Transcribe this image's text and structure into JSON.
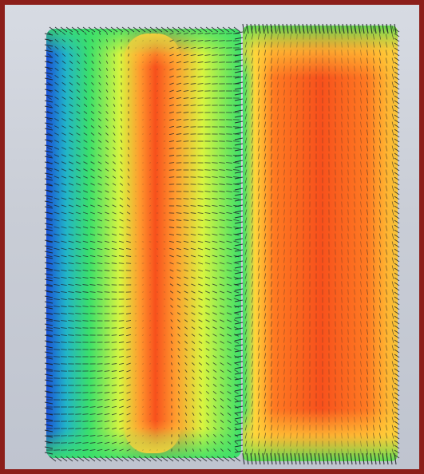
{
  "image": {
    "frame_color": "#8c1f1a",
    "background_color": "#ccd0d8",
    "vector_color": "#1e2228",
    "left_panel": {
      "gradient_stops": [
        "#1a4fd8",
        "#21b4c9",
        "#3be06a",
        "#d9f53f",
        "#ff9a2e",
        "#f7501c",
        "#ff9a2e",
        "#d9f53f",
        "#3be06a"
      ]
    },
    "right_panel": {
      "gradient_stops": [
        "#3be06a",
        "#ffd53a",
        "#ff7a22",
        "#f7501c",
        "#ff7a22",
        "#ffb030",
        "#f7c53a"
      ],
      "end_band_color": "#55e055"
    }
  }
}
